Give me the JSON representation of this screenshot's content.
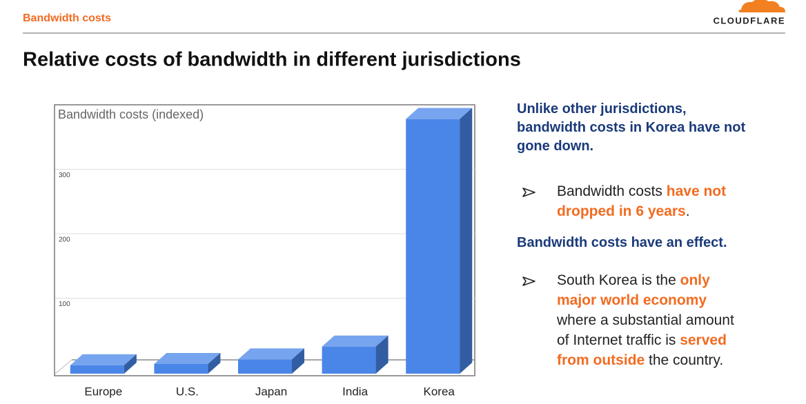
{
  "header": {
    "section": "Bandwidth costs",
    "logo": "CLOUDFLARE"
  },
  "slide_title": "Relative costs of bandwidth in different jurisdictions",
  "chart_data": {
    "type": "bar",
    "title": "Bandwidth costs (indexed)",
    "categories": [
      "Europe",
      "U.S.",
      "Japan",
      "India",
      "Korea"
    ],
    "values": [
      13,
      15,
      22,
      42,
      395
    ],
    "color": "#4a86e8",
    "ylim": [
      0,
      400
    ],
    "yticks": [
      100,
      200,
      300
    ],
    "grid": true
  },
  "emphasis_color": "#f26b21",
  "notes": [
    {
      "heading": "Unlike other jurisdictions, bandwidth costs in Korea have not gone down.",
      "bullet": [
        {
          "text": "Bandwidth costs ",
          "emphasis": false
        },
        {
          "text": "have not dropped in 6 years",
          "emphasis": true
        },
        {
          "text": ".",
          "emphasis": false
        }
      ]
    },
    {
      "heading": "Bandwidth costs have an effect.",
      "bullet": [
        {
          "text": "South Korea is the ",
          "emphasis": false
        },
        {
          "text": "only major world economy",
          "emphasis": true
        },
        {
          "text": " where a substantial amount of Internet traffic is ",
          "emphasis": false
        },
        {
          "text": "served from outside",
          "emphasis": true
        },
        {
          "text": " the country.",
          "emphasis": false
        }
      ]
    }
  ]
}
